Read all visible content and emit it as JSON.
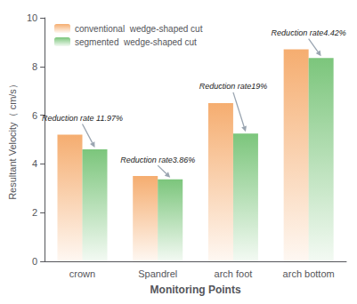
{
  "chart_data": {
    "type": "bar",
    "xlabel": "Monitoring Points",
    "ylabel": "Resultant Velocity（ cm/s）",
    "categories": [
      "crown",
      "Spandrel",
      "arch foot",
      "arch bottom"
    ],
    "series": [
      {
        "name": "conventional  wedge-shaped cut",
        "color": "#F4A460",
        "values": [
          5.2,
          3.5,
          6.5,
          8.7
        ]
      },
      {
        "name": "segmented  wedge-shaped cut",
        "color": "#6DBF6D",
        "values": [
          4.6,
          3.37,
          5.25,
          8.35
        ]
      }
    ],
    "ylim": [
      0,
      10
    ],
    "yticks": [
      0,
      2,
      4,
      6,
      8,
      10
    ],
    "grid": false,
    "legend": "upper left",
    "annotations": [
      "Reduction rate 11.97%",
      "Reduction rate3.86%",
      "Reduction rate19%",
      "Reduction rate4.42%"
    ]
  }
}
